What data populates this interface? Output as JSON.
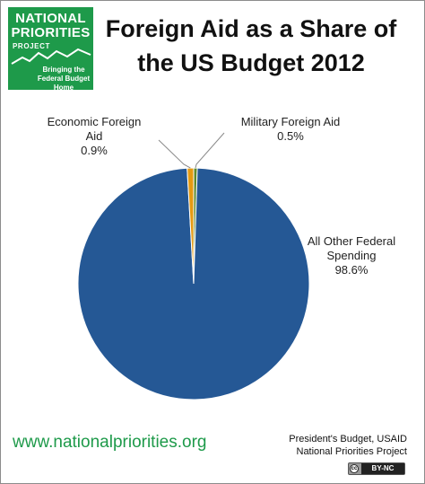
{
  "logo": {
    "line1": "NATIONAL",
    "line2": "PRIORITIES",
    "line3": "PROJECT",
    "tagline1": "Bringing the",
    "tagline2": "Federal Budget Home",
    "color": "#1e9a4a"
  },
  "footer": {
    "url": "www.nationalpriorities.org",
    "source_line1": "President's Budget, USAID",
    "source_line2": "National Priorities Project",
    "license": "BY-NC",
    "license_mark": "cc"
  },
  "chart_data": {
    "type": "pie",
    "title": "Foreign Aid as a Share of the US Budget 2012",
    "title_lines": [
      "Foreign Aid as a Share of",
      "the US Budget 2012"
    ],
    "slices": [
      {
        "name": "All Other Federal Spending",
        "value": 98.6,
        "label_lines": [
          "All Other Federal",
          "Spending",
          "98.6%"
        ],
        "color": "#255895"
      },
      {
        "name": "Economic Foreign Aid",
        "value": 0.9,
        "label_lines": [
          "Economic Foreign",
          "Aid",
          "0.9%"
        ],
        "color": "#e59a12"
      },
      {
        "name": "Military Foreign Aid",
        "value": 0.5,
        "label_lines": [
          "Military Foreign  Aid",
          "0.5%"
        ],
        "color": "#5e8a2c"
      }
    ]
  }
}
